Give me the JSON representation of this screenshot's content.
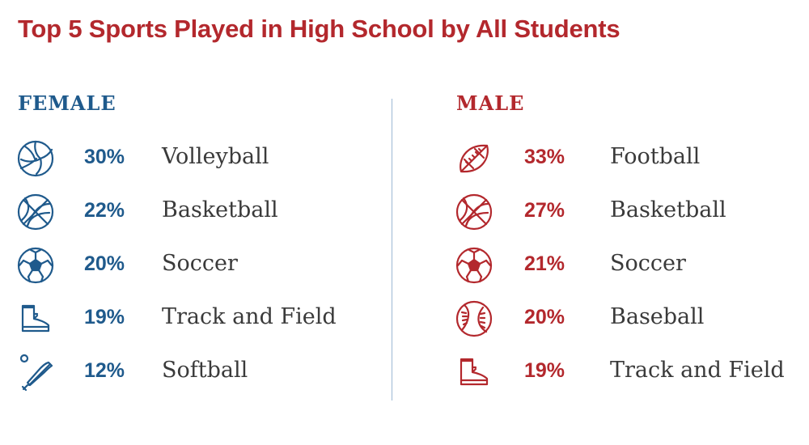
{
  "title": "Top 5 Sports Played in High School by All Students",
  "colors": {
    "title": "#b3282d",
    "female": "#1f5a8c",
    "male": "#b3282d",
    "divider": "#9cb8d4"
  },
  "chart_data": {
    "type": "table",
    "title": "Top 5 Sports Played in High School by All Students",
    "groups": [
      {
        "name": "FEMALE",
        "rows": [
          {
            "icon": "volleyball-icon",
            "percent": "30%",
            "value": 30,
            "sport": "Volleyball"
          },
          {
            "icon": "basketball-icon",
            "percent": "22%",
            "value": 22,
            "sport": "Basketball"
          },
          {
            "icon": "soccer-ball-icon",
            "percent": "20%",
            "value": 20,
            "sport": "Soccer"
          },
          {
            "icon": "track-shoe-icon",
            "percent": "19%",
            "value": 19,
            "sport": "Track and Field"
          },
          {
            "icon": "softball-bat-icon",
            "percent": "12%",
            "value": 12,
            "sport": "Softball"
          }
        ]
      },
      {
        "name": "MALE",
        "rows": [
          {
            "icon": "football-icon",
            "percent": "33%",
            "value": 33,
            "sport": "Football"
          },
          {
            "icon": "basketball-icon",
            "percent": "27%",
            "value": 27,
            "sport": "Basketball"
          },
          {
            "icon": "soccer-ball-icon",
            "percent": "21%",
            "value": 21,
            "sport": "Soccer"
          },
          {
            "icon": "baseball-icon",
            "percent": "20%",
            "value": 20,
            "sport": "Baseball"
          },
          {
            "icon": "track-shoe-icon",
            "percent": "19%",
            "value": 19,
            "sport": "Track and Field"
          }
        ]
      }
    ]
  }
}
